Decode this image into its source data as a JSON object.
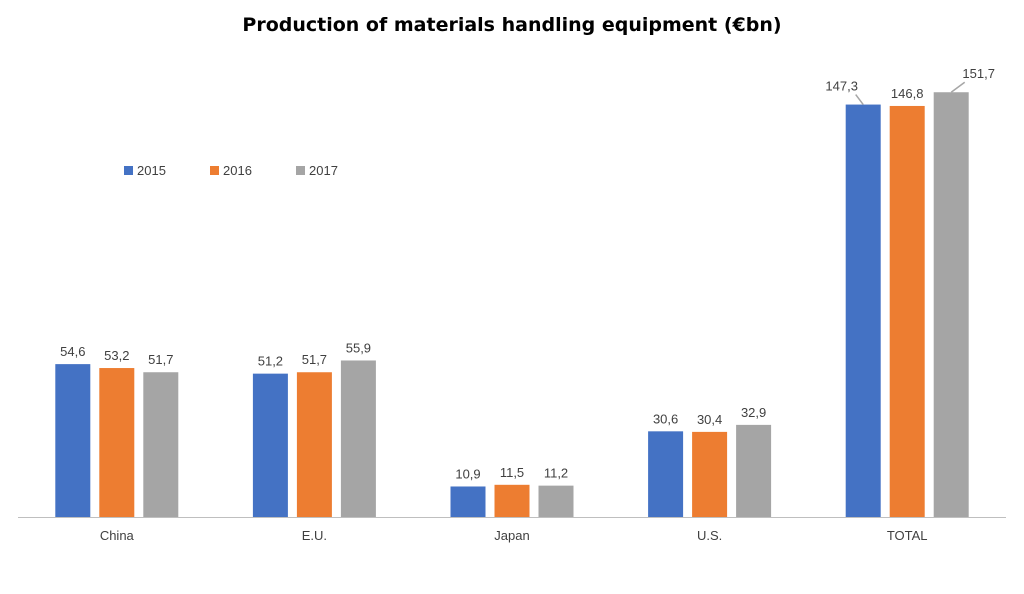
{
  "chart_data": {
    "type": "bar",
    "title": "Production of materials handling equipment (€bn)",
    "xlabel": "",
    "ylabel": "",
    "categories": [
      "China",
      "E.U.",
      "Japan",
      "U.S.",
      "TOTAL"
    ],
    "series": [
      {
        "name": "2015",
        "color": "#4472C4",
        "values": [
          54.6,
          51.2,
          10.9,
          30.6,
          147.3
        ],
        "labels": [
          "54,6",
          "51,2",
          "10,9",
          "30,6",
          "147,3"
        ]
      },
      {
        "name": "2016",
        "color": "#ED7D31",
        "values": [
          53.2,
          51.7,
          11.5,
          30.4,
          146.8
        ],
        "labels": [
          "53,2",
          "51,7",
          "11,5",
          "30,4",
          "146,8"
        ]
      },
      {
        "name": "2017",
        "color": "#A5A5A5",
        "values": [
          51.7,
          55.9,
          11.2,
          32.9,
          151.7
        ],
        "labels": [
          "51,7",
          "55,9",
          "11,2",
          "32,9",
          "151,7"
        ]
      }
    ],
    "ylim": [
      0,
      160
    ],
    "grid": false,
    "legend_position": "top-left"
  }
}
